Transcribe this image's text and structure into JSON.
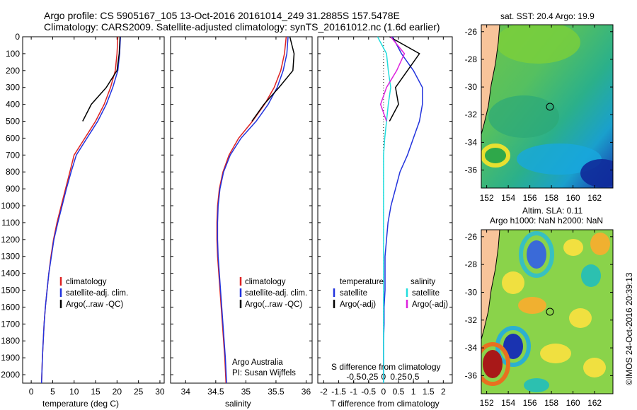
{
  "header": {
    "line1": "Argo profile: CS 5905167_105 13-Oct-2016 20161014_249 31.2885S 157.5478E",
    "line2": "Climatology: CARS2009. Satellite-adjusted climatology: synTS_20161012.nc (1.6d earlier)"
  },
  "colors": {
    "climatology": "#dd2222",
    "satellite": "#2233dd",
    "argo": "#000000",
    "sat_salinity": "#22dddd",
    "argo_salinity": "#dd22dd",
    "land": "#f8c49a"
  },
  "panels": {
    "temperature": {
      "xlabel": "temperature (deg C)",
      "xticks": [
        "0",
        "5",
        "10",
        "15",
        "20",
        "25",
        "30"
      ],
      "legend": [
        "climatology",
        "satellite-adj. clim.",
        "Argo(..raw -QC)"
      ]
    },
    "salinity": {
      "xlabel": "salinity",
      "xticks": [
        "34",
        "34.5",
        "35",
        "35.5",
        "36"
      ],
      "legend": [
        "climatology",
        "satellite-adj. clim.",
        "Argo(..raw -QC)"
      ],
      "note1": "Argo Australia",
      "note2": "PI: Susan Wijffels"
    },
    "difference": {
      "xlabel": "T difference from climatology",
      "xlabel2": "S difference from climatology",
      "xticks": [
        "-2",
        "-1.5",
        "-1",
        "-0.5",
        "0",
        "0.5",
        "1",
        "1.5",
        "2"
      ],
      "sticks": [
        "-0.5",
        "-0.25",
        "0",
        "0.25",
        "0.5"
      ],
      "legend_temp_head": "temperature",
      "legend_sal_head": "salinity",
      "legend_temp": [
        "satellite",
        "Argo(-adj)"
      ],
      "legend_sal": [
        "satellite",
        "Argo(-adj)"
      ]
    },
    "depth_ticks": [
      "0",
      "100",
      "200",
      "300",
      "400",
      "500",
      "600",
      "700",
      "800",
      "900",
      "1000",
      "1100",
      "1200",
      "1300",
      "1400",
      "1500",
      "1600",
      "1700",
      "1800",
      "1900",
      "2000"
    ]
  },
  "maps": {
    "top_title": "sat. SST: 20.4  Argo: 19.9",
    "bottom_title1": "Altim. SLA: 0.11",
    "bottom_title2": "Argo h1000: NaN  h2000: NaN",
    "lat_ticks": [
      "-26",
      "-28",
      "-30",
      "-32",
      "-34",
      "-36"
    ],
    "lon_ticks": [
      "152",
      "154",
      "156",
      "158",
      "160",
      "162"
    ],
    "credit": "©IMOS 24-Oct-2016 20:39:13"
  },
  "chart_data": [
    {
      "type": "line",
      "title": "",
      "xlabel": "temperature (deg C)",
      "ylabel": "",
      "xlim": [
        -2,
        31
      ],
      "ylim": [
        2050,
        0
      ],
      "series": [
        {
          "name": "climatology",
          "x": [
            20.2,
            20.0,
            19.6,
            18.5,
            17.0,
            15.0,
            12.5,
            10.0,
            9.0,
            8.0,
            7.0,
            6.0,
            5.2,
            4.6,
            4.1,
            3.7,
            3.3,
            3.0,
            2.8,
            2.6,
            2.4
          ],
          "y": [
            0,
            100,
            200,
            300,
            400,
            500,
            600,
            700,
            800,
            900,
            1000,
            1100,
            1200,
            1300,
            1400,
            1500,
            1600,
            1700,
            1800,
            1900,
            2050
          ]
        },
        {
          "name": "satellite-adj. clim.",
          "x": [
            20.8,
            20.6,
            20.2,
            19.0,
            17.5,
            15.5,
            13.0,
            10.5,
            9.3,
            8.2,
            7.2,
            6.2,
            5.3,
            4.7,
            4.1,
            3.7,
            3.3,
            3.0,
            2.8,
            2.6,
            2.4
          ],
          "y": [
            0,
            100,
            200,
            300,
            400,
            500,
            600,
            700,
            800,
            900,
            1000,
            1100,
            1200,
            1300,
            1400,
            1500,
            1600,
            1700,
            1800,
            1900,
            2050
          ]
        },
        {
          "name": "Argo(..raw -QC)",
          "x": [
            20.7,
            20.5,
            20.0,
            17.5,
            14.0,
            12.0
          ],
          "y": [
            0,
            100,
            200,
            300,
            400,
            500
          ]
        }
      ]
    },
    {
      "type": "line",
      "xlabel": "salinity",
      "xlim": [
        33.75,
        36.1
      ],
      "ylim": [
        2050,
        0
      ],
      "series": [
        {
          "name": "climatology",
          "x": [
            35.67,
            35.64,
            35.58,
            35.47,
            35.31,
            35.11,
            34.88,
            34.72,
            34.62,
            34.56,
            34.53,
            34.52,
            34.52,
            34.53,
            34.55,
            34.57,
            34.59,
            34.61,
            34.63,
            34.65,
            34.67
          ],
          "y": [
            0,
            100,
            200,
            300,
            400,
            500,
            600,
            700,
            800,
            900,
            1000,
            1100,
            1200,
            1300,
            1400,
            1500,
            1600,
            1700,
            1800,
            1900,
            2050
          ]
        },
        {
          "name": "satellite-adj. clim.",
          "x": [
            35.7,
            35.68,
            35.62,
            35.52,
            35.37,
            35.17,
            34.92,
            34.74,
            34.63,
            34.57,
            34.54,
            34.53,
            34.53,
            34.54,
            34.56,
            34.58,
            34.6,
            34.62,
            34.64,
            34.66,
            34.68
          ],
          "y": [
            0,
            100,
            200,
            300,
            400,
            500,
            600,
            700,
            800,
            900,
            1000,
            1100,
            1200,
            1300,
            1400,
            1500,
            1600,
            1700,
            1800,
            1900,
            2050
          ]
        },
        {
          "name": "Argo(..raw -QC)",
          "x": [
            35.73,
            35.8,
            35.78,
            35.55,
            35.3,
            35.1
          ],
          "y": [
            0,
            100,
            200,
            300,
            400,
            500
          ]
        }
      ]
    },
    {
      "type": "line",
      "xlabel": "T difference from climatology",
      "xlim": [
        -2.2,
        2.3
      ],
      "ylim": [
        2050,
        0
      ],
      "series": [
        {
          "name": "temperature satellite",
          "x": [
            0.3,
            0.6,
            1.0,
            1.3,
            1.3,
            1.2,
            1.0,
            0.8,
            0.55,
            0.4,
            0.25,
            0.15,
            0.1,
            0.05,
            0.05,
            0.05,
            0.02,
            0.02,
            0.0,
            0.0,
            0.0
          ],
          "y": [
            0,
            100,
            200,
            300,
            400,
            500,
            600,
            700,
            800,
            900,
            1000,
            1100,
            1200,
            1300,
            1400,
            1500,
            1600,
            1700,
            1800,
            1900,
            2050
          ]
        },
        {
          "name": "temperature Argo(-adj)",
          "x": [
            0.2,
            1.2,
            0.8,
            0.4,
            0.5,
            0.2
          ],
          "y": [
            0,
            100,
            200,
            300,
            400,
            500
          ]
        },
        {
          "name": "salinity satellite",
          "x": [
            -0.1,
            0.05,
            0.08,
            0.12,
            0.08,
            0.05,
            0.02,
            0.0,
            0.0,
            0.0,
            0.0,
            0.0,
            0.0,
            0.0,
            0.0,
            0.0,
            0.0,
            0.0,
            0.0,
            0.0,
            0.0
          ],
          "y": [
            0,
            100,
            200,
            300,
            400,
            500,
            600,
            700,
            800,
            900,
            1000,
            1100,
            1200,
            1300,
            1400,
            1500,
            1600,
            1700,
            1800,
            1900,
            2050
          ]
        },
        {
          "name": "salinity Argo(-adj)",
          "x": [
            0.12,
            0.35,
            0.22,
            0.05,
            -0.05,
            0.05
          ],
          "y": [
            0,
            100,
            200,
            300,
            400,
            500
          ]
        }
      ]
    }
  ]
}
